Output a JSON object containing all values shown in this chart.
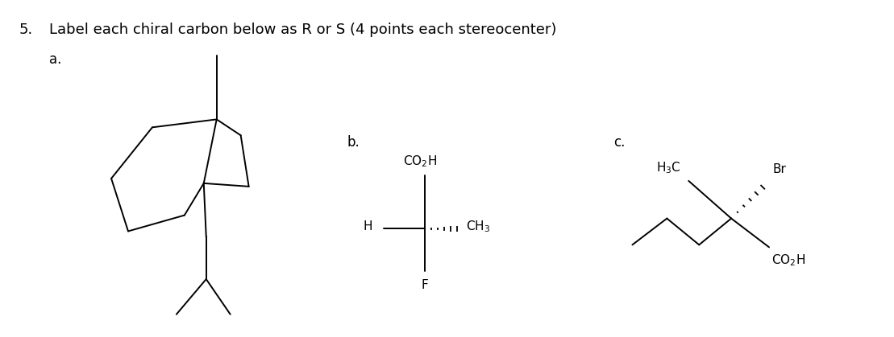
{
  "title_number": "5.",
  "title_text": "Label each chiral carbon below as R or S (4 points each stereocenter)",
  "label_a": "a.",
  "label_b": "b.",
  "label_c": "c.",
  "bg_color": "#ffffff",
  "line_color": "#000000",
  "text_color": "#000000",
  "font_size_title": 13,
  "font_size_label": 12,
  "font_size_chem": 11
}
